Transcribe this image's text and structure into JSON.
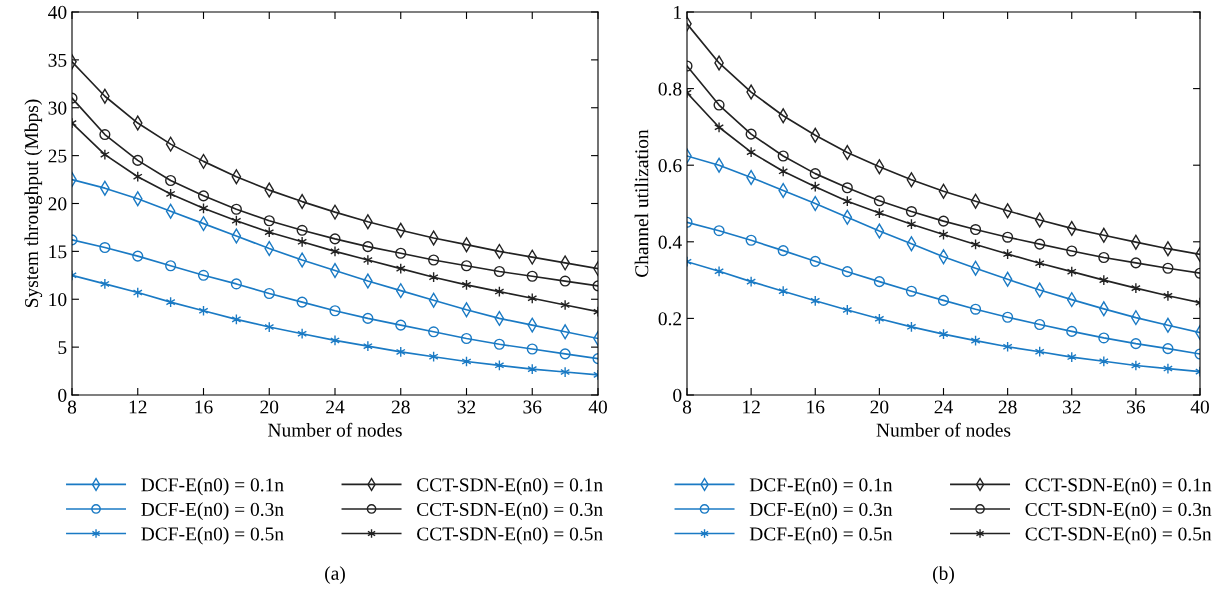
{
  "chart_data": [
    {
      "type": "line",
      "xlabel": "Number of nodes",
      "ylabel": "System throughput (Mbps)",
      "annotations": [
        "(a)"
      ],
      "x": [
        8,
        10,
        12,
        14,
        16,
        18,
        20,
        22,
        24,
        26,
        28,
        30,
        32,
        34,
        36,
        38,
        40
      ],
      "xlim": [
        8,
        40
      ],
      "xticks": [
        8,
        12,
        16,
        20,
        24,
        28,
        32,
        36,
        40
      ],
      "ylim": [
        0,
        40
      ],
      "yticks": [
        0,
        5,
        10,
        15,
        20,
        25,
        30,
        35,
        40
      ],
      "grid": false,
      "legend": "bottom",
      "line_style": "solid",
      "series": [
        {
          "name": "DCF-E(n0) = 0.1n",
          "color": "#1a7ac4",
          "marker": "diamond",
          "values": [
            22.5,
            21.6,
            20.5,
            19.2,
            17.9,
            16.6,
            15.3,
            14.1,
            13.0,
            11.9,
            10.9,
            9.9,
            8.9,
            8.0,
            7.3,
            6.6,
            5.9
          ]
        },
        {
          "name": "DCF-E(n0) = 0.3n",
          "color": "#1a7ac4",
          "marker": "circle",
          "values": [
            16.2,
            15.4,
            14.5,
            13.5,
            12.5,
            11.6,
            10.6,
            9.7,
            8.8,
            8.0,
            7.3,
            6.6,
            5.9,
            5.3,
            4.8,
            4.3,
            3.8
          ]
        },
        {
          "name": "DCF-E(n0) = 0.5n",
          "color": "#1a7ac4",
          "marker": "cross",
          "values": [
            12.5,
            11.6,
            10.7,
            9.7,
            8.8,
            7.9,
            7.1,
            6.4,
            5.7,
            5.1,
            4.5,
            4.0,
            3.5,
            3.1,
            2.7,
            2.4,
            2.1
          ]
        },
        {
          "name": "CCT-SDN-E(n0) = 0.1n",
          "color": "#222222",
          "marker": "diamond",
          "values": [
            34.8,
            31.2,
            28.4,
            26.2,
            24.4,
            22.8,
            21.4,
            20.2,
            19.1,
            18.1,
            17.2,
            16.4,
            15.7,
            15.0,
            14.4,
            13.8,
            13.2
          ]
        },
        {
          "name": "CCT-SDN-E(n0) = 0.3n",
          "color": "#222222",
          "marker": "circle",
          "values": [
            31.0,
            27.2,
            24.5,
            22.4,
            20.8,
            19.4,
            18.2,
            17.2,
            16.3,
            15.5,
            14.8,
            14.1,
            13.5,
            12.9,
            12.4,
            11.9,
            11.4
          ]
        },
        {
          "name": "CCT-SDN-E(n0) = 0.5n",
          "color": "#222222",
          "marker": "cross",
          "values": [
            28.4,
            25.1,
            22.8,
            21.0,
            19.5,
            18.2,
            17.0,
            16.0,
            15.0,
            14.1,
            13.2,
            12.3,
            11.5,
            10.8,
            10.1,
            9.4,
            8.7
          ]
        }
      ]
    },
    {
      "type": "line",
      "xlabel": "Number of nodes",
      "ylabel": "Channel utilization",
      "annotations": [
        "(b)"
      ],
      "x": [
        8,
        10,
        12,
        14,
        16,
        18,
        20,
        22,
        24,
        26,
        28,
        30,
        32,
        34,
        36,
        38,
        40
      ],
      "xlim": [
        8,
        40
      ],
      "xticks": [
        8,
        12,
        16,
        20,
        24,
        28,
        32,
        36,
        40
      ],
      "ylim": [
        0,
        1
      ],
      "yticks": [
        0,
        0.2,
        0.4,
        0.6,
        0.8,
        1
      ],
      "grid": false,
      "legend": "bottom",
      "line_style": "solid",
      "series": [
        {
          "name": "DCF-E(n0) = 0.1n",
          "color": "#1a7ac4",
          "marker": "diamond",
          "values": [
            0.624,
            0.6,
            0.568,
            0.534,
            0.5,
            0.464,
            0.428,
            0.395,
            0.361,
            0.331,
            0.302,
            0.274,
            0.249,
            0.225,
            0.202,
            0.182,
            0.163
          ]
        },
        {
          "name": "DCF-E(n0) = 0.3n",
          "color": "#1a7ac4",
          "marker": "circle",
          "values": [
            0.451,
            0.429,
            0.404,
            0.377,
            0.349,
            0.322,
            0.296,
            0.271,
            0.247,
            0.224,
            0.203,
            0.184,
            0.166,
            0.149,
            0.134,
            0.121,
            0.107
          ]
        },
        {
          "name": "DCF-E(n0) = 0.5n",
          "color": "#1a7ac4",
          "marker": "cross",
          "values": [
            0.348,
            0.323,
            0.296,
            0.271,
            0.246,
            0.222,
            0.199,
            0.178,
            0.159,
            0.142,
            0.126,
            0.113,
            0.099,
            0.088,
            0.077,
            0.069,
            0.061
          ]
        },
        {
          "name": "CCT-SDN-E(n0) = 0.1n",
          "color": "#222222",
          "marker": "diamond",
          "values": [
            0.969,
            0.867,
            0.791,
            0.729,
            0.678,
            0.633,
            0.596,
            0.562,
            0.532,
            0.506,
            0.481,
            0.457,
            0.435,
            0.417,
            0.399,
            0.382,
            0.367
          ]
        },
        {
          "name": "CCT-SDN-E(n0) = 0.3n",
          "color": "#222222",
          "marker": "circle",
          "values": [
            0.859,
            0.757,
            0.681,
            0.624,
            0.578,
            0.541,
            0.507,
            0.479,
            0.454,
            0.432,
            0.412,
            0.394,
            0.376,
            0.359,
            0.345,
            0.331,
            0.318
          ]
        },
        {
          "name": "CCT-SDN-E(n0) = 0.5n",
          "color": "#222222",
          "marker": "cross",
          "values": [
            0.789,
            0.699,
            0.634,
            0.584,
            0.544,
            0.506,
            0.475,
            0.446,
            0.419,
            0.393,
            0.368,
            0.344,
            0.322,
            0.3,
            0.279,
            0.259,
            0.241
          ]
        }
      ]
    }
  ]
}
